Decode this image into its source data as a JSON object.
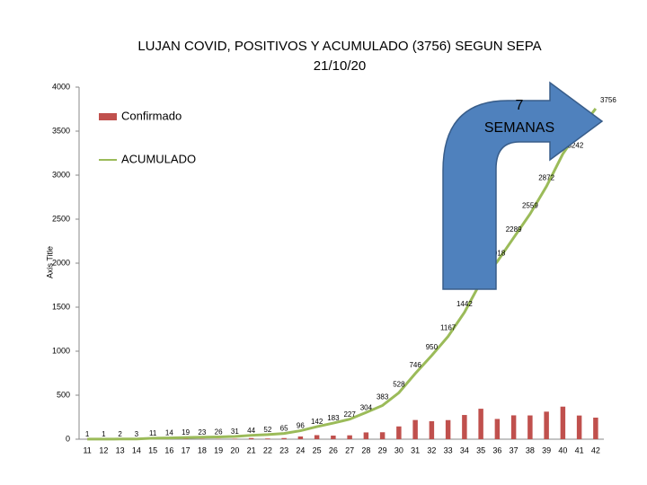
{
  "chart_data": {
    "type": "bar-line",
    "title": "LUJAN COVID, POSITIVOS Y ACUMULADO (3756) SEGUN SEPA",
    "subtitle": "21/10/20",
    "y_label": "Axis Title",
    "annotation": [
      "7",
      "SEMANAS"
    ],
    "categories": [
      "11",
      "12",
      "13",
      "14",
      "15",
      "16",
      "17",
      "18",
      "19",
      "20",
      "21",
      "22",
      "23",
      "24",
      "25",
      "26",
      "27",
      "28",
      "29",
      "30",
      "31",
      "32",
      "33",
      "34",
      "35",
      "36",
      "37",
      "38",
      "39",
      "40",
      "41",
      "42"
    ],
    "series": [
      {
        "name": "Confirmado",
        "type": "bar",
        "color": "#c0504d",
        "values": [
          1,
          0,
          1,
          1,
          8,
          3,
          5,
          4,
          3,
          5,
          13,
          8,
          13,
          31,
          46,
          41,
          44,
          77,
          79,
          145,
          218,
          204,
          217,
          275,
          346,
          230,
          271,
          270,
          313,
          370,
          269,
          245
        ]
      },
      {
        "name": "ACUMULADO",
        "type": "line",
        "color": "#9bbb59",
        "values": [
          1,
          1,
          2,
          3,
          11,
          14,
          19,
          23,
          26,
          31,
          44,
          52,
          65,
          96,
          142,
          183,
          227,
          304,
          383,
          528,
          746,
          950,
          1167,
          1442,
          1788,
          2018,
          2289,
          2559,
          2872,
          3242,
          3511,
          3756
        ]
      }
    ],
    "ylim": [
      0,
      4000
    ],
    "yticks": [
      0,
      500,
      1000,
      1500,
      2000,
      2500,
      3000,
      3500,
      4000
    ],
    "grid": false
  }
}
